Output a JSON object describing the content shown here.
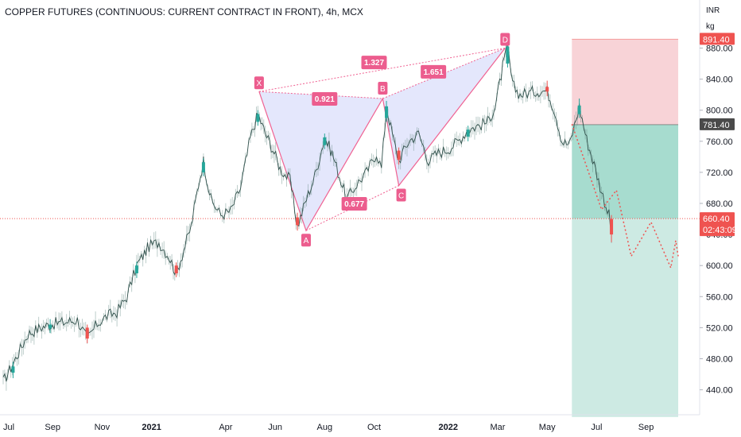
{
  "header": {
    "title": "COPPER FUTURES (CONTINUOUS: CURRENT CONTRACT IN FRONT), 4h, MCX"
  },
  "price_axis": {
    "unit_line1": "INR",
    "unit_line2": "kg"
  },
  "colors": {
    "up": "#26a69a",
    "down": "#ef5350",
    "pattern_fill": "#dfe3fb",
    "pattern_line": "#f06292",
    "label_bg": "#ec5d8e",
    "stop_zone": "#f8d3d7",
    "target_zone": "#a7dccf",
    "projection_zone": "#cdeae3",
    "dotted_path": "#ef5350"
  },
  "chart_data": {
    "type": "line",
    "title": "COPPER FUTURES (CONTINUOUS: CURRENT CONTRACT IN FRONT), 4h, MCX",
    "xlabel": "",
    "ylabel": "",
    "ylim": [
      405,
      900
    ],
    "yticks": [
      "880.00",
      "840.00",
      "800.00",
      "760.00",
      "720.00",
      "680.00",
      "640.00",
      "600.00",
      "560.00",
      "520.00",
      "480.00",
      "440.00"
    ],
    "xticks": [
      {
        "label": "Jul",
        "t": 0,
        "bold": false
      },
      {
        "label": "Sep",
        "t": 2,
        "bold": false
      },
      {
        "label": "Nov",
        "t": 4,
        "bold": false
      },
      {
        "label": "2021",
        "t": 6,
        "bold": true
      },
      {
        "label": "Apr",
        "t": 9,
        "bold": false
      },
      {
        "label": "Jun",
        "t": 11,
        "bold": false
      },
      {
        "label": "Aug",
        "t": 13,
        "bold": false
      },
      {
        "label": "Oct",
        "t": 15,
        "bold": false
      },
      {
        "label": "2022",
        "t": 18,
        "bold": true
      },
      {
        "label": "Mar",
        "t": 20,
        "bold": false
      },
      {
        "label": "May",
        "t": 22,
        "bold": false
      },
      {
        "label": "Jul",
        "t": 24,
        "bold": false
      },
      {
        "label": "Sep",
        "t": 26,
        "bold": false
      }
    ],
    "price_path": [
      [
        0.0,
        450
      ],
      [
        0.5,
        480
      ],
      [
        1.0,
        512
      ],
      [
        1.5,
        520
      ],
      [
        2.0,
        525
      ],
      [
        2.5,
        527
      ],
      [
        3.0,
        530
      ],
      [
        3.4,
        505
      ],
      [
        3.8,
        525
      ],
      [
        4.2,
        535
      ],
      [
        4.6,
        540
      ],
      [
        5.0,
        560
      ],
      [
        5.4,
        600
      ],
      [
        5.9,
        625
      ],
      [
        6.3,
        630
      ],
      [
        6.7,
        612
      ],
      [
        7.0,
        590
      ],
      [
        7.3,
        620
      ],
      [
        7.6,
        650
      ],
      [
        7.9,
        705
      ],
      [
        8.1,
        735
      ],
      [
        8.4,
        685
      ],
      [
        8.8,
        665
      ],
      [
        9.2,
        670
      ],
      [
        9.6,
        700
      ],
      [
        10.0,
        765
      ],
      [
        10.3,
        795
      ],
      [
        10.6,
        770
      ],
      [
        10.9,
        750
      ],
      [
        11.2,
        725
      ],
      [
        11.6,
        710
      ],
      [
        11.9,
        650
      ],
      [
        12.2,
        680
      ],
      [
        12.6,
        715
      ],
      [
        13.0,
        765
      ],
      [
        13.3,
        745
      ],
      [
        13.6,
        715
      ],
      [
        13.9,
        685
      ],
      [
        14.3,
        705
      ],
      [
        14.7,
        720
      ],
      [
        15.1,
        745
      ],
      [
        15.3,
        725
      ],
      [
        15.5,
        805
      ],
      [
        15.8,
        760
      ],
      [
        16.0,
        735
      ],
      [
        16.4,
        760
      ],
      [
        16.8,
        770
      ],
      [
        17.2,
        735
      ],
      [
        17.6,
        745
      ],
      [
        18.0,
        750
      ],
      [
        18.4,
        760
      ],
      [
        18.8,
        775
      ],
      [
        19.2,
        780
      ],
      [
        19.6,
        785
      ],
      [
        19.9,
        805
      ],
      [
        20.2,
        855
      ],
      [
        20.4,
        882
      ],
      [
        20.6,
        832
      ],
      [
        20.9,
        820
      ],
      [
        21.2,
        822
      ],
      [
        21.6,
        825
      ],
      [
        22.0,
        825
      ],
      [
        22.3,
        800
      ],
      [
        22.6,
        760
      ],
      [
        22.9,
        755
      ],
      [
        23.1,
        780
      ],
      [
        23.3,
        805
      ],
      [
        23.6,
        762
      ],
      [
        23.9,
        730
      ],
      [
        24.2,
        695
      ],
      [
        24.5,
        665
      ],
      [
        24.6,
        640
      ]
    ],
    "candles": [
      {
        "t": 0.4,
        "o": 462,
        "h": 476,
        "l": 455,
        "c": 470
      },
      {
        "t": 1.9,
        "o": 519,
        "h": 531,
        "l": 513,
        "c": 524
      },
      {
        "t": 3.4,
        "o": 520,
        "h": 524,
        "l": 500,
        "c": 506
      },
      {
        "t": 5.4,
        "o": 590,
        "h": 605,
        "l": 584,
        "c": 600
      },
      {
        "t": 7.0,
        "o": 600,
        "h": 604,
        "l": 585,
        "c": 590
      },
      {
        "t": 8.1,
        "o": 720,
        "h": 738,
        "l": 715,
        "c": 733
      },
      {
        "t": 10.3,
        "o": 785,
        "h": 800,
        "l": 780,
        "c": 795
      },
      {
        "t": 11.9,
        "o": 662,
        "h": 668,
        "l": 645,
        "c": 652
      },
      {
        "t": 13.0,
        "o": 755,
        "h": 770,
        "l": 750,
        "c": 765
      },
      {
        "t": 15.5,
        "o": 790,
        "h": 812,
        "l": 785,
        "c": 805
      },
      {
        "t": 16.0,
        "o": 748,
        "h": 752,
        "l": 730,
        "c": 736
      },
      {
        "t": 18.8,
        "o": 766,
        "h": 780,
        "l": 760,
        "c": 775
      },
      {
        "t": 20.4,
        "o": 860,
        "h": 888,
        "l": 855,
        "c": 882
      },
      {
        "t": 22.0,
        "o": 830,
        "h": 838,
        "l": 818,
        "c": 824
      },
      {
        "t": 23.3,
        "o": 795,
        "h": 815,
        "l": 790,
        "c": 806
      },
      {
        "t": 24.6,
        "o": 660,
        "h": 665,
        "l": 630,
        "c": 640
      }
    ],
    "harmonic_pattern": {
      "points": [
        {
          "label": "X",
          "t": 10.35,
          "price": 824
        },
        {
          "label": "A",
          "t": 12.25,
          "price": 645
        },
        {
          "label": "B",
          "t": 15.35,
          "price": 815
        },
        {
          "label": "C",
          "t": 16.0,
          "price": 703
        },
        {
          "label": "D",
          "t": 20.3,
          "price": 880
        }
      ],
      "ratios": [
        {
          "label": "0.921",
          "t": 13.0,
          "price": 815
        },
        {
          "label": "1.327",
          "t": 15.0,
          "price": 862
        },
        {
          "label": "1.651",
          "t": 17.4,
          "price": 850
        },
        {
          "label": "0.677",
          "t": 14.2,
          "price": 680
        }
      ]
    },
    "position_zones": {
      "stop_top": 891.4,
      "entry": 781.4,
      "target": 660.4,
      "projection_bottom": 405,
      "t_start": 23.0,
      "t_end": 27.3
    },
    "projection_path": [
      [
        23.0,
        782
      ],
      [
        24.2,
        672
      ],
      [
        24.8,
        697
      ],
      [
        25.4,
        612
      ],
      [
        26.2,
        656
      ],
      [
        27.0,
        597
      ],
      [
        27.2,
        632
      ],
      [
        27.3,
        612
      ]
    ],
    "price_tags": [
      {
        "label": "891.40",
        "price": 891.4,
        "color": "#ef5350"
      },
      {
        "label": "781.40",
        "price": 781.4,
        "color": "#4a4a4a"
      },
      {
        "label": "660.40",
        "price": 660.4,
        "color": "#ef5350",
        "extra": "02:43:09"
      }
    ]
  }
}
